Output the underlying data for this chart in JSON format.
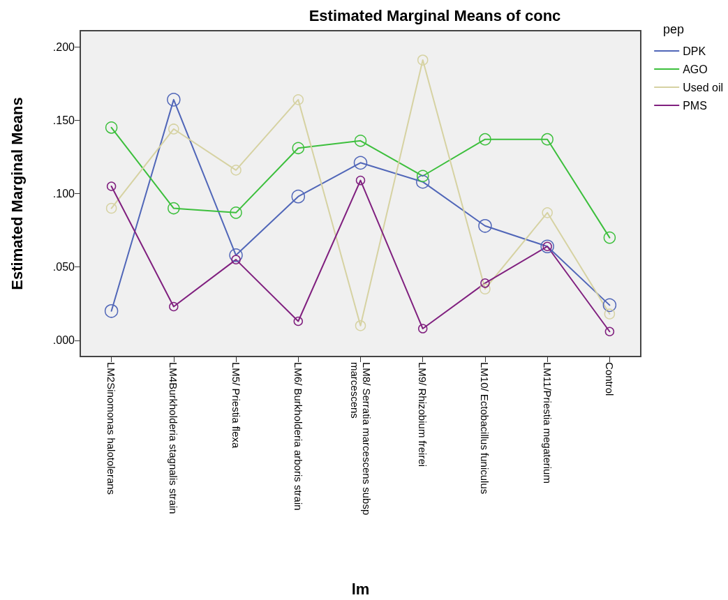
{
  "chart_data": {
    "type": "line",
    "title": "Estimated Marginal Means of conc",
    "xlabel": "lm",
    "ylabel": "Estimated Marginal Means",
    "legend_title": "pep",
    "categories": [
      "LM2Sinomonas halotolerans",
      "LM4Burkholderia stagnalis strain",
      "LM5/ Priestia flexa",
      "LM6/ Burkholderia arboris strain",
      "LM8/ Serratia marcescens subsp marcescens",
      "LM9/ Rhizobium freirei",
      "LM10/ Ectobacillus funiculus",
      "LM11/Priestia megaterium",
      "Control"
    ],
    "series": [
      {
        "name": "DPK",
        "color": "#5066b8",
        "values": [
          0.02,
          0.164,
          0.058,
          0.098,
          0.121,
          0.108,
          0.078,
          0.064,
          0.024
        ]
      },
      {
        "name": "AGO",
        "color": "#3cbf3c",
        "values": [
          0.145,
          0.09,
          0.087,
          0.131,
          0.136,
          0.112,
          0.137,
          0.137,
          0.07
        ]
      },
      {
        "name": "Used oil",
        "color": "#d6d2a2",
        "values": [
          0.09,
          0.144,
          0.116,
          0.164,
          0.01,
          0.191,
          0.035,
          0.087,
          0.018
        ]
      },
      {
        "name": "PMS",
        "color": "#80207f",
        "values": [
          0.105,
          0.023,
          0.055,
          0.013,
          0.109,
          0.008,
          0.039,
          0.064,
          0.006
        ]
      }
    ],
    "ylim": [
      -0.011,
      0.211
    ],
    "yticks": [
      {
        "value": 0,
        "label": ".000"
      },
      {
        "value": 0.05,
        "label": ".050"
      },
      {
        "value": 0.1,
        "label": ".100"
      },
      {
        "value": 0.15,
        "label": ".150"
      },
      {
        "value": 0.2,
        "label": ".200"
      }
    ],
    "grid": false,
    "legend": "top right",
    "marker": "circle",
    "line_style": "solid"
  }
}
